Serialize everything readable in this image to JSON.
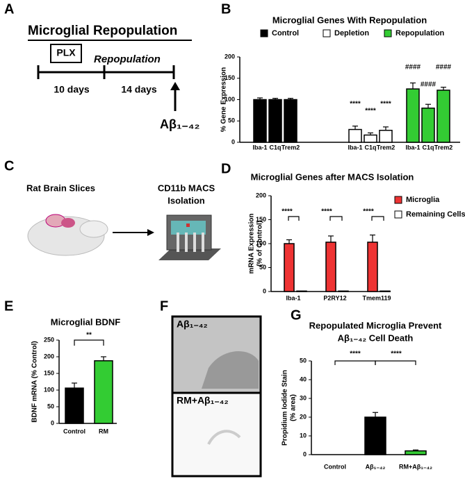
{
  "panel_labels": [
    "A",
    "B",
    "C",
    "D",
    "E",
    "F",
    "G"
  ],
  "panel_a": {
    "title": "Microglial Repopulation",
    "drug": "PLX",
    "phase": "Repopulation",
    "period_1": "10 days",
    "period_2": "14 days",
    "treatment": "Aβ₁₋₄₂"
  },
  "panel_c": {
    "source": "Rat Brain Slices",
    "method": [
      "CD11b MACS",
      "Isolation"
    ]
  },
  "panel_f": {
    "top_label": "Aβ₁₋₄₂",
    "bottom_label": "RM+Aβ₁₋₄₂"
  },
  "chart_data": [
    {
      "type": "bar",
      "title": [
        "Microglial Genes With Repopulation"
      ],
      "ylabel": [
        "% Gene Expression"
      ],
      "categories": [
        "Iba-1",
        "C1q",
        "Trem2",
        "Iba-1",
        "C1q",
        "Trem2",
        "Iba-1",
        "C1q",
        "Trem2"
      ],
      "series": [
        {
          "name": "Control",
          "color": "#000000",
          "values": [
            100,
            100,
            100,
            null,
            null,
            null,
            null,
            null,
            null
          ],
          "errors": [
            4,
            3,
            3,
            null,
            null,
            null,
            null,
            null,
            null
          ]
        },
        {
          "name": "Depletion",
          "color": "#ffffff",
          "values": [
            null,
            null,
            null,
            30,
            17,
            28,
            null,
            null,
            null
          ],
          "errors": [
            null,
            null,
            null,
            8,
            5,
            8,
            null,
            null,
            null
          ]
        },
        {
          "name": "Repopulation",
          "color": "#33cc33",
          "values": [
            null,
            null,
            null,
            null,
            null,
            null,
            125,
            80,
            122
          ],
          "errors": [
            null,
            null,
            null,
            null,
            null,
            null,
            14,
            9,
            7
          ]
        }
      ],
      "annotations": [
        "****",
        "****",
        "****",
        "####",
        "####",
        "####"
      ],
      "ylim": [
        0,
        200
      ],
      "yticks": [
        0,
        50,
        100,
        150,
        200
      ],
      "legend": "top"
    },
    {
      "type": "bar",
      "title": [
        "Microglial Genes after MACS Isolation"
      ],
      "ylabel": [
        "mRNA Expression",
        "(% of Control)"
      ],
      "categories": [
        "Iba-1",
        "P2RY12",
        "Tmem119"
      ],
      "series": [
        {
          "name": "Microglia",
          "color": "#ee3333",
          "values": [
            100,
            103,
            103
          ],
          "errors": [
            8,
            13,
            15
          ]
        },
        {
          "name": "Remaining Cells",
          "color": "#ffffff",
          "values": [
            1,
            1,
            1
          ],
          "errors": [
            null,
            null,
            null
          ]
        }
      ],
      "annotations": [
        "****",
        "****",
        "****"
      ],
      "ylim": [
        0,
        200
      ],
      "yticks": [
        0,
        50,
        100,
        150,
        200
      ],
      "legend": "right"
    },
    {
      "type": "bar",
      "title": [
        "Microglial BDNF"
      ],
      "ylabel": [
        "BDNF mRNA (% Control)"
      ],
      "categories": [
        "Control",
        "RM"
      ],
      "values": [
        106,
        188
      ],
      "errors": [
        15,
        12
      ],
      "colors": [
        "#000000",
        "#33cc33"
      ],
      "annotations": [
        "**"
      ],
      "ylim": [
        0,
        250
      ],
      "yticks": [
        0,
        50,
        100,
        150,
        200,
        250
      ]
    },
    {
      "type": "bar",
      "title": [
        "Repopulated Microglia Prevent",
        "Aβ₁₋₄₂ Cell Death"
      ],
      "ylabel": [
        "Propidium Iodide Stain",
        "(% area)"
      ],
      "categories": [
        "Control",
        "Aβ₁₋₄₂",
        "RM+Aβ₁₋₄₂"
      ],
      "values": [
        0,
        20,
        2
      ],
      "errors": [
        null,
        2.5,
        0.5
      ],
      "colors": [
        "#000000",
        "#000000",
        "#33cc33"
      ],
      "annotations": [
        "****",
        "****"
      ],
      "ylim": [
        0,
        50
      ],
      "yticks": [
        0,
        10,
        20,
        30,
        40,
        50
      ]
    }
  ]
}
